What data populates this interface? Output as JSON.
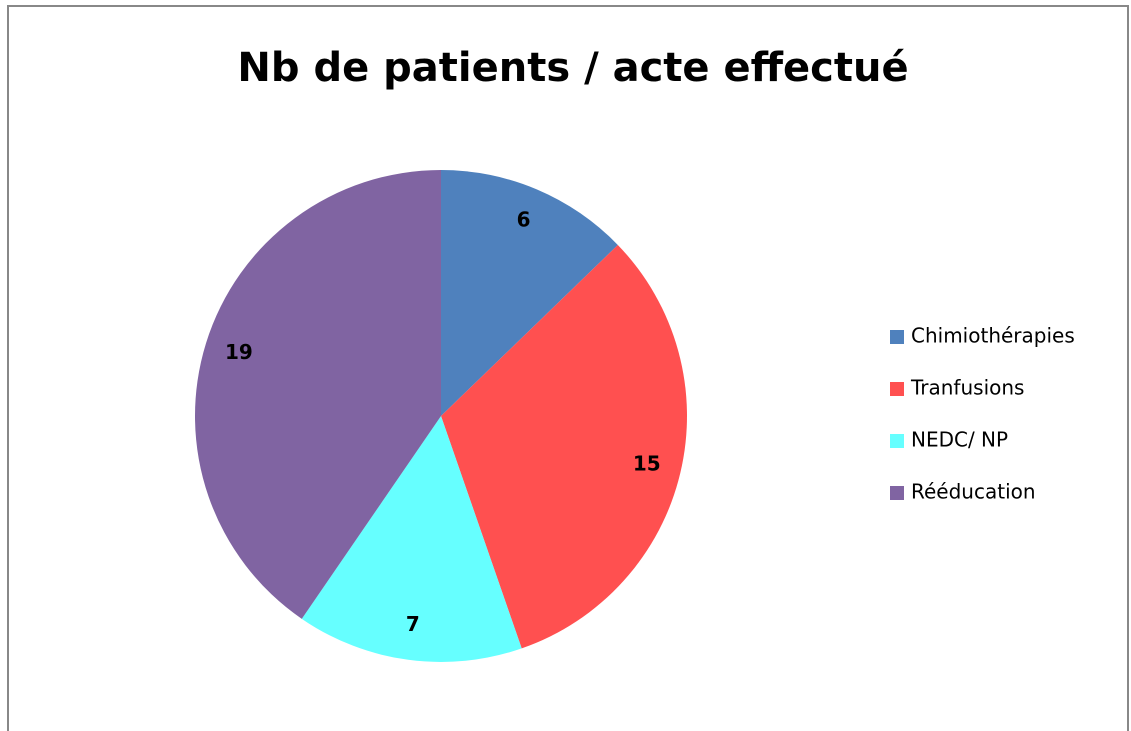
{
  "chart_data": {
    "type": "pie",
    "title": "Nb de patients / acte effectué",
    "categories": [
      "Chimiothérapies",
      "Tranfusions",
      "NEDC/ NP",
      "Rééducation"
    ],
    "values": [
      6,
      15,
      7,
      19
    ],
    "colors": [
      "#4f81bd",
      "#ff5050",
      "#66ffff",
      "#8064a2"
    ],
    "legend": "right"
  }
}
